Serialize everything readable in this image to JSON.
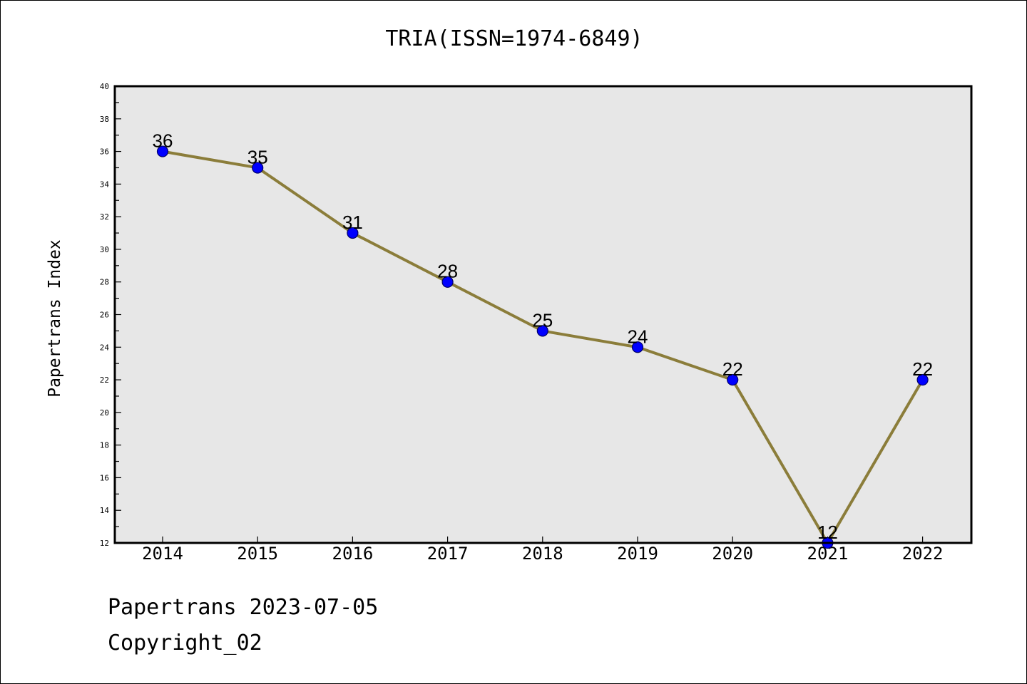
{
  "chart_data": {
    "type": "line",
    "title": "TRIA(ISSN=1974-6849)",
    "xlabel": "",
    "ylabel": "Papertrans Index",
    "categories": [
      "2014",
      "2015",
      "2016",
      "2017",
      "2018",
      "2019",
      "2020",
      "2021",
      "2022"
    ],
    "series": [
      {
        "values": [
          36,
          35,
          31,
          28,
          25,
          24,
          22,
          12,
          22
        ]
      }
    ],
    "data_labels": [
      "36",
      "35",
      "31",
      "28",
      "25",
      "24",
      "22",
      "12",
      "22"
    ],
    "ylim": [
      12,
      40
    ],
    "yticks": [
      "12",
      "14",
      "16",
      "18",
      "20",
      "22",
      "24",
      "26",
      "28",
      "30",
      "32",
      "34",
      "36",
      "38",
      "40"
    ],
    "grid": false,
    "legend": "none",
    "colors": {
      "line": "#8b7d3a",
      "marker_fill": "#0000ff",
      "marker_edge": "#000066",
      "plot_background": "#e7e7e7",
      "frame": "#000000"
    }
  },
  "footer": {
    "line1": "Papertrans 2023-07-05",
    "line2": "Copyright_02"
  }
}
